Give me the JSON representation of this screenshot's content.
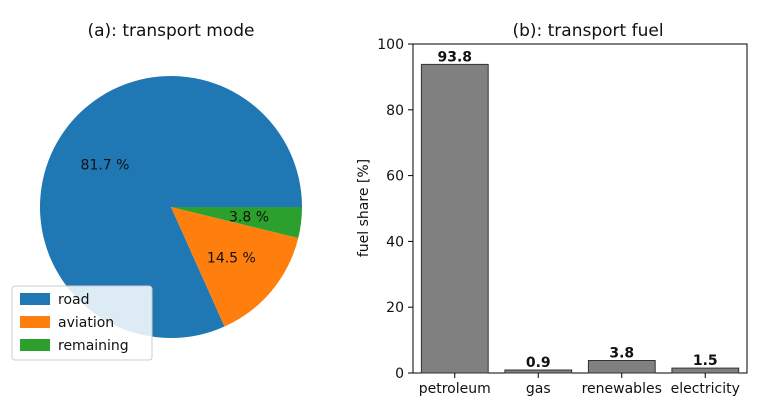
{
  "chart_data": [
    {
      "type": "pie",
      "title": "(a): transport mode",
      "slices": [
        {
          "label": "road",
          "value": 81.7,
          "display": "81.7 %",
          "color": "#1f77b4"
        },
        {
          "label": "aviation",
          "value": 14.5,
          "display": "14.5 %",
          "color": "#ff7f0e"
        },
        {
          "label": "remaining",
          "value": 3.8,
          "display": "3.8 %",
          "color": "#2ca02c"
        }
      ],
      "legend_position": "lower-left"
    },
    {
      "type": "bar",
      "title": "(b): transport fuel",
      "categories": [
        "petroleum",
        "gas",
        "renewables",
        "electricity"
      ],
      "values": [
        93.8,
        0.9,
        3.8,
        1.5
      ],
      "value_labels": [
        "93.8",
        "0.9",
        "3.8",
        "1.5"
      ],
      "xlabel": "",
      "ylabel": "fuel share [%]",
      "ylim": [
        0,
        100
      ],
      "yticks": [
        "0",
        "20",
        "40",
        "60",
        "80",
        "100"
      ],
      "bar_color": "#808080",
      "grid": false
    }
  ]
}
